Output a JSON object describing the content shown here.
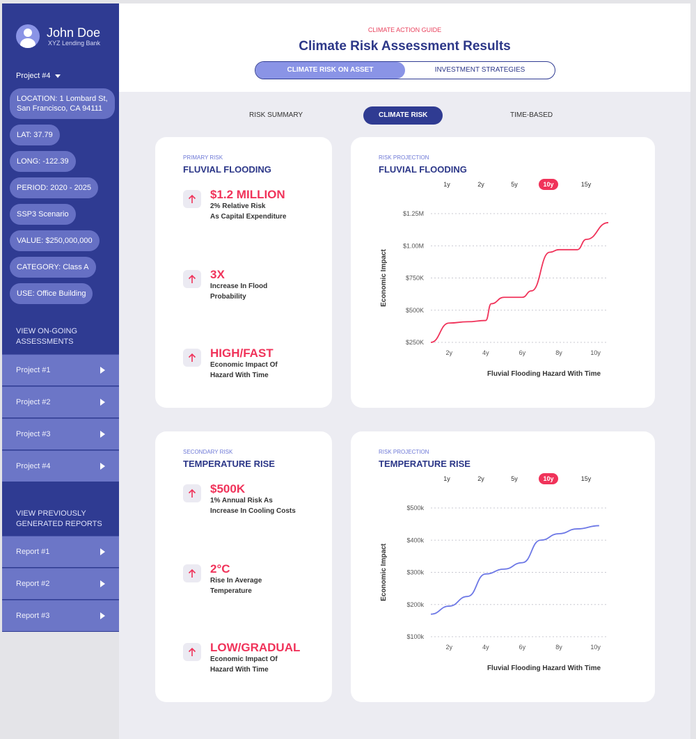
{
  "sidebar": {
    "user_name": "John Doe",
    "bank": "XYZ Lending Bank",
    "project_select": "Project #4",
    "pills": [
      "LOCATION: 1 Lombard St,",
      "San Francisco, CA 94111",
      "LAT: 37.79",
      "LONG: -122.39",
      "PERIOD: 2020 - 2025",
      "SSP3 Scenario",
      "VALUE: $250,000,000",
      "CATEGORY: Class A",
      "USE: Office Building"
    ],
    "ongoing_heading": [
      "VIEW ON-GOING",
      "ASSESSMENTS"
    ],
    "projects": [
      "Project #1",
      "Project #2",
      "Project #3",
      "Project #4"
    ],
    "reports_heading": [
      "VIEW PREVIOUSLY",
      "GENERATED REPORTS"
    ],
    "reports": [
      "Report #1",
      "Report #2",
      "Report #3"
    ]
  },
  "header": {
    "eyebrow": "CLIMATE ACTION GUIDE",
    "title": "Climate Risk Assessment Results",
    "tabs": [
      "CLIMATE RISK ON ASSET",
      "INVESTMENT STRATEGIES"
    ],
    "active_tab": "CLIMATE RISK ON ASSET"
  },
  "subtabs": [
    "RISK SUMMARY",
    "CLIMATE RISK",
    "TIME-BASED"
  ],
  "active_subtab": "CLIMATE RISK",
  "primary": {
    "eyebrow": "PRIMARY RISK",
    "title": "FLUVIAL FLOODING",
    "metrics": [
      {
        "value": "$1.2 MILLION",
        "desc1": "2% Relative Risk",
        "desc2": "As Capital Expenditure"
      },
      {
        "value": "3X",
        "desc1": "Increase In Flood",
        "desc2": "Probability"
      },
      {
        "value": "HIGH/FAST",
        "desc1": "Economic Impact Of",
        "desc2": "Hazard With Time"
      }
    ]
  },
  "secondary": {
    "eyebrow": "SECONDARY RISK",
    "title": "TEMPERATURE RISE",
    "metrics": [
      {
        "value": "$500K",
        "desc1": "1% Annual Risk As",
        "desc2": "Increase In Cooling Costs"
      },
      {
        "value": "2°C",
        "desc1": "Rise In Average",
        "desc2": "Temperature"
      },
      {
        "value": "LOW/GRADUAL",
        "desc1": "Economic Impact Of",
        "desc2": "Hazard With Time"
      }
    ]
  },
  "projection1": {
    "eyebrow": "RISK PROJECTION",
    "title": "FLUVIAL FLOODING",
    "periods": [
      "1y",
      "2y",
      "5y",
      "10y",
      "15y"
    ],
    "active_period": "10y"
  },
  "projection2": {
    "eyebrow": "RISK PROJECTION",
    "title": "TEMPERATURE RISE",
    "periods": [
      "1y",
      "2y",
      "5y",
      "10y",
      "15y"
    ],
    "active_period": "10y"
  },
  "colors": {
    "accent": "#f0335a",
    "navy": "#2f3b92",
    "periwinkle": "#8a94e6"
  },
  "icons": [
    "avatar-icon",
    "caret-down-icon",
    "arrow-up-icon",
    "play-icon"
  ],
  "chart_data": [
    {
      "type": "line",
      "title": "",
      "xlabel": "Fluvial Flooding Hazard With Time",
      "ylabel": "Economic Impact",
      "x_ticks": [
        "2y",
        "4y",
        "6y",
        "8y",
        "10y"
      ],
      "y_ticks": [
        "$250K",
        "$500K",
        "$750K",
        "$1.00M",
        "$1.25M"
      ],
      "ylim": [
        250000,
        1250000
      ],
      "xlim": [
        1,
        10.7
      ],
      "grid": true,
      "color": "#f0335a",
      "series": [
        {
          "x": [
            1,
            2,
            3,
            4,
            4.3,
            5,
            6,
            6.5,
            7.5,
            8,
            9,
            9.5,
            10.7
          ],
          "y": [
            250000,
            400000,
            410000,
            420000,
            550000,
            600000,
            600000,
            650000,
            950000,
            970000,
            970000,
            1050000,
            1180000
          ]
        }
      ]
    },
    {
      "type": "line",
      "title": "",
      "xlabel": "Fluvial Flooding Hazard With Time",
      "ylabel": "Economic Impact",
      "x_ticks": [
        "2y",
        "4y",
        "6y",
        "8y",
        "10y"
      ],
      "y_ticks": [
        "$100k",
        "$200k",
        "$300k",
        "$400k",
        "$500k"
      ],
      "ylim": [
        100000,
        500000
      ],
      "xlim": [
        1,
        10.7
      ],
      "grid": true,
      "color": "#6d78e6",
      "series": [
        {
          "x": [
            1,
            2,
            3,
            4,
            5,
            6,
            7,
            8,
            9,
            10.2
          ],
          "y": [
            170000,
            195000,
            225000,
            295000,
            310000,
            330000,
            400000,
            420000,
            435000,
            445000
          ]
        }
      ]
    }
  ]
}
